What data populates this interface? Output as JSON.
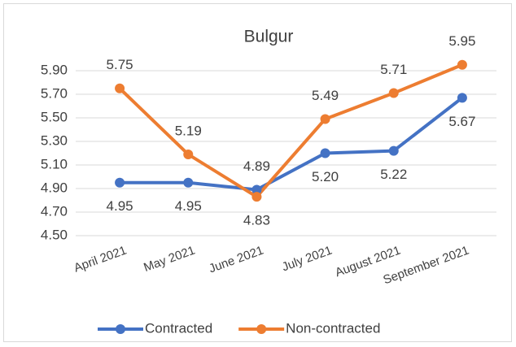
{
  "chart_data": {
    "type": "line",
    "title": "Bulgur",
    "categories": [
      "April 2021",
      "May 2021",
      "June 2021",
      "July 2021",
      "August 2021",
      "September 2021"
    ],
    "series": [
      {
        "name": "Contracted",
        "color": "#4472c4",
        "values": [
          4.95,
          4.95,
          4.89,
          5.2,
          5.22,
          5.67
        ],
        "value_labels": [
          "4.95",
          "4.95",
          "4.89",
          "5.20",
          "5.22",
          "5.67"
        ]
      },
      {
        "name": "Non-contracted",
        "color": "#ed7d31",
        "values": [
          5.75,
          5.19,
          4.83,
          5.49,
          5.71,
          5.95
        ],
        "value_labels": [
          "5.75",
          "5.19",
          "4.83",
          "5.49",
          "5.71",
          "5.95"
        ]
      }
    ],
    "ylim": [
      4.5,
      6.0
    ],
    "yticks": [
      {
        "value": 4.5,
        "label": "4.50"
      },
      {
        "value": 4.7,
        "label": "4.70"
      },
      {
        "value": 4.9,
        "label": "4.90"
      },
      {
        "value": 5.1,
        "label": "5.10"
      },
      {
        "value": 5.3,
        "label": "5.30"
      },
      {
        "value": 5.5,
        "label": "5.50"
      },
      {
        "value": 5.7,
        "label": "5.70"
      },
      {
        "value": 5.9,
        "label": "5.90"
      }
    ],
    "grid": true,
    "legend": "bottom"
  }
}
